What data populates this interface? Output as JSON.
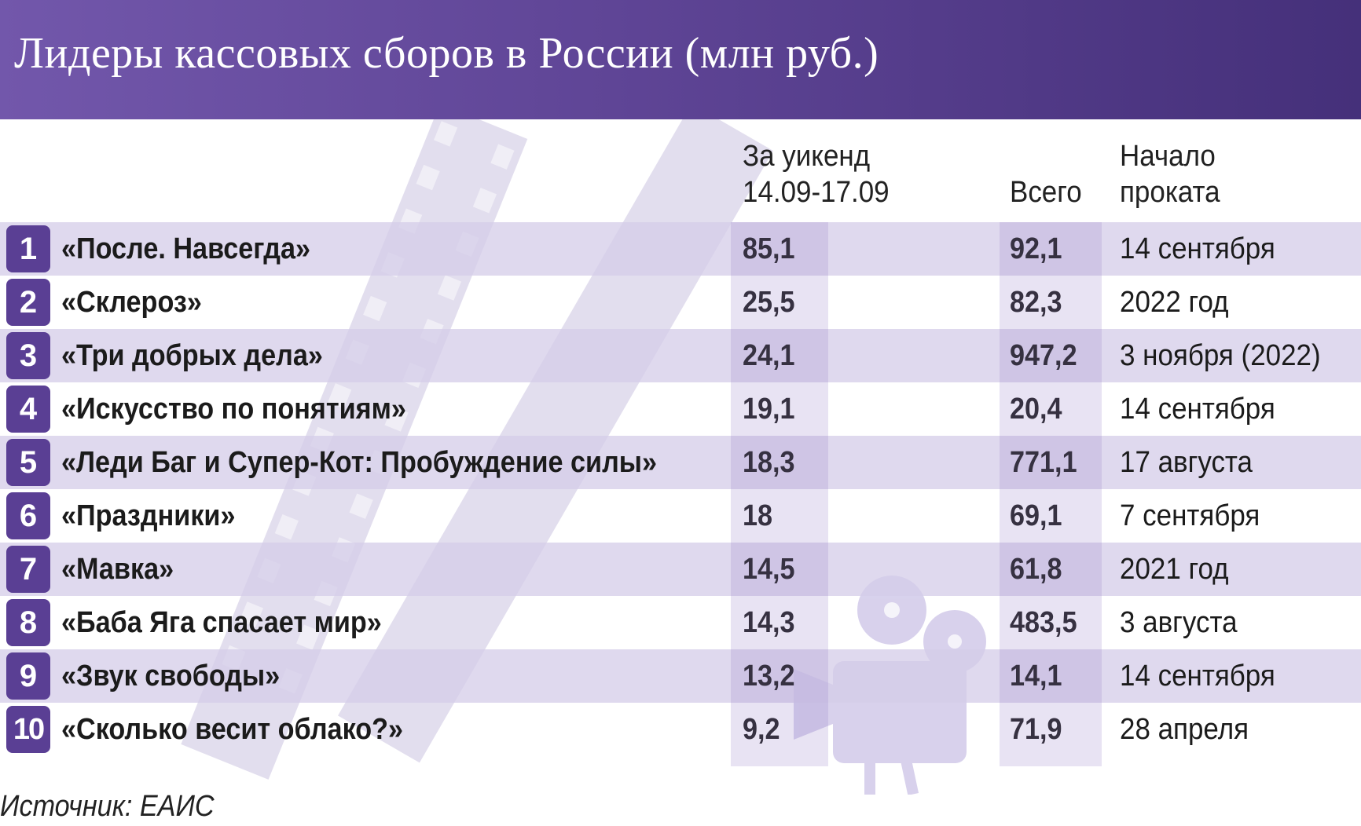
{
  "title": "Лидеры кассовых сборов в России (млн руб.)",
  "columns": {
    "weekend_line1": "За уикенд",
    "weekend_line2": "14.09-17.09",
    "total": "Всего",
    "start_line1": "Начало",
    "start_line2": "проката"
  },
  "rows": [
    {
      "rank": "1",
      "film": "«После. Навсегда»",
      "weekend": "85,1",
      "total": "92,1",
      "start": "14 сентября"
    },
    {
      "rank": "2",
      "film": "«Склероз»",
      "weekend": "25,5",
      "total": "82,3",
      "start": "2022 год"
    },
    {
      "rank": "3",
      "film": "«Три добрых дела»",
      "weekend": "24,1",
      "total": "947,2",
      "start": "3 ноября (2022)"
    },
    {
      "rank": "4",
      "film": "«Искусство по понятиям»",
      "weekend": "19,1",
      "total": "20,4",
      "start": "14 сентября"
    },
    {
      "rank": "5",
      "film": "«Леди Баг и Супер-Кот: Пробуждение силы»",
      "weekend": "18,3",
      "total": "771,1",
      "start": "17 августа"
    },
    {
      "rank": "6",
      "film": "«Праздники»",
      "weekend": "18",
      "total": "69,1",
      "start": "7 сентября"
    },
    {
      "rank": "7",
      "film": "«Мавка»",
      "weekend": "14,5",
      "total": "61,8",
      "start": "2021 год"
    },
    {
      "rank": "8",
      "film": "«Баба Яга спасает мир»",
      "weekend": "14,3",
      "total": "483,5",
      "start": "3 августа"
    },
    {
      "rank": "9",
      "film": "«Звук свободы»",
      "weekend": "13,2",
      "total": "14,1",
      "start": "14 сентября"
    },
    {
      "rank": "10",
      "film": "«Сколько весит облако?»",
      "weekend": "9,2",
      "total": "71,9",
      "start": "28 апреля"
    }
  ],
  "source": "Источник: ЕАИС",
  "colors": {
    "header_start": "#7257ab",
    "header_end": "#45307a",
    "rank_badge": "#5a3f94",
    "row_shade": "#d4cce8"
  }
}
